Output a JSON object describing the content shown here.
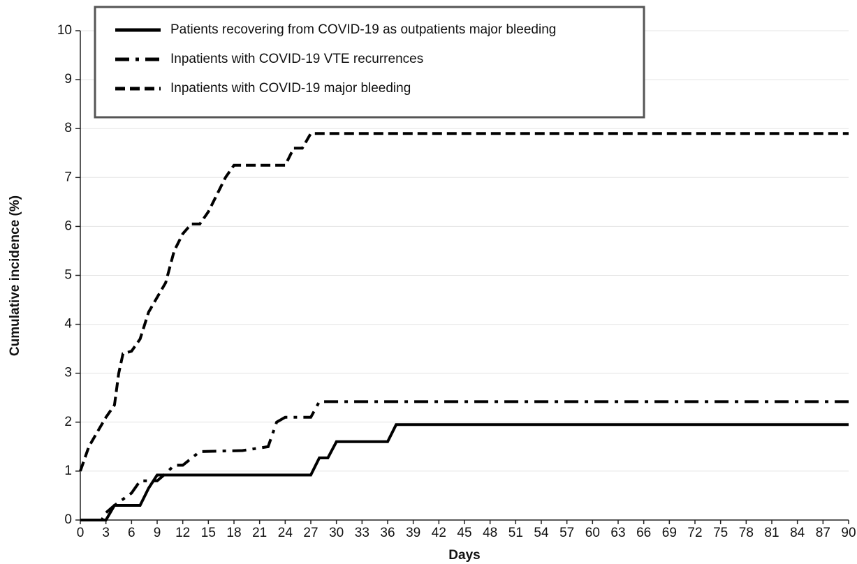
{
  "chart_data": {
    "type": "line",
    "x_label": "Days",
    "y_label": "Cumulative incidence (%)",
    "xlim": [
      0,
      90
    ],
    "xticks": [
      0,
      3,
      6,
      9,
      12,
      15,
      18,
      21,
      24,
      27,
      30,
      33,
      36,
      39,
      42,
      45,
      48,
      51,
      54,
      57,
      60,
      63,
      66,
      69,
      72,
      75,
      78,
      81,
      84,
      87,
      90
    ],
    "ylim": [
      0,
      10
    ],
    "yticks": [
      0,
      1,
      2,
      3,
      4,
      5,
      6,
      7,
      8,
      9,
      10
    ],
    "grid": true,
    "legend": "top-left",
    "series": [
      {
        "name": "Patients recovering from COVID-19 as outpatients major bleeding",
        "color": "#000000",
        "style": "solid",
        "x": [
          0,
          3,
          4,
          7,
          8,
          9,
          27,
          28,
          29,
          30,
          36,
          37,
          90
        ],
        "values": [
          0,
          0,
          0.3,
          0.3,
          0.65,
          0.92,
          0.92,
          1.27,
          1.27,
          1.6,
          1.6,
          1.95,
          1.95
        ]
      },
      {
        "name": "Inpatients with COVID-19 VTE recurrences",
        "color": "#000000",
        "style": "dashdot",
        "x": [
          0,
          2.5,
          3,
          4,
          6,
          7,
          9,
          10,
          11,
          12,
          14,
          19,
          22,
          23,
          24,
          27,
          28,
          90
        ],
        "values": [
          0,
          0,
          0.15,
          0.3,
          0.55,
          0.8,
          0.8,
          0.95,
          1.12,
          1.12,
          1.4,
          1.42,
          1.5,
          2.0,
          2.1,
          2.1,
          2.42,
          2.42
        ]
      },
      {
        "name": "Inpatients with COVID-19 major bleeding",
        "color": "#000000",
        "style": "dashed",
        "x": [
          0,
          1,
          2,
          3,
          4,
          4.5,
          5,
          6,
          7,
          8,
          9,
          10,
          11,
          12,
          13,
          14,
          15,
          16,
          17,
          18,
          24,
          25,
          26,
          27,
          90
        ],
        "values": [
          1.0,
          1.5,
          1.8,
          2.1,
          2.35,
          3.0,
          3.4,
          3.45,
          3.7,
          4.25,
          4.55,
          4.85,
          5.5,
          5.85,
          6.05,
          6.05,
          6.3,
          6.65,
          7.0,
          7.25,
          7.25,
          7.6,
          7.6,
          7.9,
          7.9
        ]
      }
    ]
  }
}
